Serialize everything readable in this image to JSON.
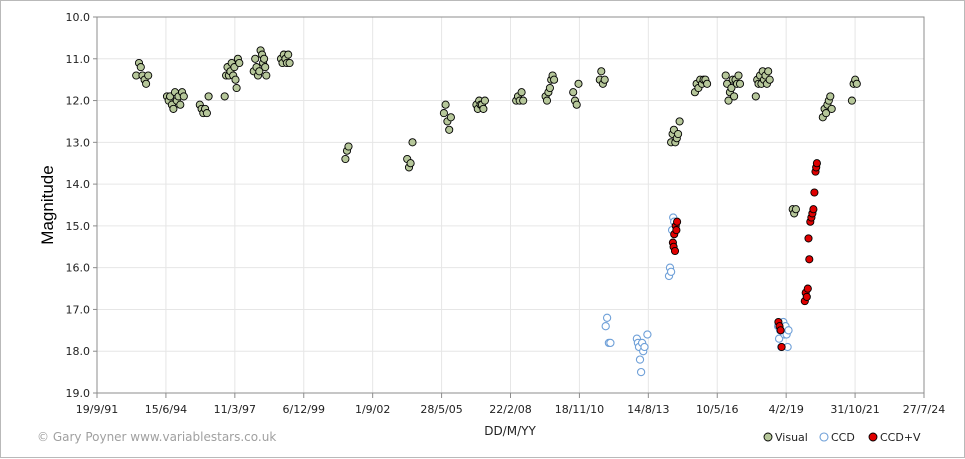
{
  "chart_data": {
    "type": "scatter",
    "title": "",
    "xlabel": "DD/M/YY",
    "ylabel": "Magnitude",
    "xlim": [
      "1991-09-19",
      "2024-07-27"
    ],
    "ylim": [
      10.0,
      19.0
    ],
    "y_inverted": true,
    "grid": true,
    "legend_position": "bottom-right",
    "x_tick_labels": [
      "19/9/91",
      "15/6/94",
      "11/3/97",
      "6/12/99",
      "1/9/02",
      "28/5/05",
      "22/2/08",
      "18/11/10",
      "14/8/13",
      "10/5/16",
      "4/2/19",
      "31/10/21",
      "27/7/24"
    ],
    "y_tick_labels": [
      "10.0",
      "11.0",
      "12.0",
      "13.0",
      "14.0",
      "15.0",
      "16.0",
      "17.0",
      "18.0",
      "19.0"
    ],
    "series": [
      {
        "name": "Visual",
        "color": "#b6c79a",
        "marker": "filled-circle",
        "points": [
          {
            "x": "1993-04-10",
            "y": 11.4
          },
          {
            "x": "1993-05-20",
            "y": 11.1
          },
          {
            "x": "1993-06-15",
            "y": 11.2
          },
          {
            "x": "1993-07-10",
            "y": 11.4
          },
          {
            "x": "1993-08-10",
            "y": 11.5
          },
          {
            "x": "1993-09-01",
            "y": 11.6
          },
          {
            "x": "1993-10-01",
            "y": 11.4
          },
          {
            "x": "1994-07-01",
            "y": 11.9
          },
          {
            "x": "1994-07-25",
            "y": 12.0
          },
          {
            "x": "1994-08-15",
            "y": 11.9
          },
          {
            "x": "1994-09-10",
            "y": 12.1
          },
          {
            "x": "1994-10-01",
            "y": 12.2
          },
          {
            "x": "1994-10-25",
            "y": 11.8
          },
          {
            "x": "1994-11-20",
            "y": 12.0
          },
          {
            "x": "1994-12-15",
            "y": 11.9
          },
          {
            "x": "1995-01-10",
            "y": 12.1
          },
          {
            "x": "1995-02-05",
            "y": 11.8
          },
          {
            "x": "1995-03-01",
            "y": 11.9
          },
          {
            "x": "1995-10-20",
            "y": 12.1
          },
          {
            "x": "1995-11-15",
            "y": 12.2
          },
          {
            "x": "1995-12-10",
            "y": 12.3
          },
          {
            "x": "1996-01-05",
            "y": 12.2
          },
          {
            "x": "1996-01-30",
            "y": 12.3
          },
          {
            "x": "1996-02-25",
            "y": 11.9
          },
          {
            "x": "1996-10-15",
            "y": 11.9
          },
          {
            "x": "1996-11-05",
            "y": 11.4
          },
          {
            "x": "1996-11-25",
            "y": 11.2
          },
          {
            "x": "1996-12-15",
            "y": 11.4
          },
          {
            "x": "1997-01-05",
            "y": 11.3
          },
          {
            "x": "1997-01-25",
            "y": 11.1
          },
          {
            "x": "1997-02-15",
            "y": 11.4
          },
          {
            "x": "1997-03-05",
            "y": 11.2
          },
          {
            "x": "1997-03-20",
            "y": 11.5
          },
          {
            "x": "1997-04-05",
            "y": 11.7
          },
          {
            "x": "1997-04-25",
            "y": 11.0
          },
          {
            "x": "1997-05-15",
            "y": 11.1
          },
          {
            "x": "1997-12-10",
            "y": 11.3
          },
          {
            "x": "1998-01-01",
            "y": 11.0
          },
          {
            "x": "1998-01-20",
            "y": 11.2
          },
          {
            "x": "1998-02-10",
            "y": 11.4
          },
          {
            "x": "1998-03-01",
            "y": 11.3
          },
          {
            "x": "1998-03-20",
            "y": 10.8
          },
          {
            "x": "1998-04-10",
            "y": 10.9
          },
          {
            "x": "1998-04-25",
            "y": 11.1
          },
          {
            "x": "1998-05-10",
            "y": 11.0
          },
          {
            "x": "1998-05-25",
            "y": 11.2
          },
          {
            "x": "1998-06-10",
            "y": 11.4
          },
          {
            "x": "1999-01-10",
            "y": 11.0
          },
          {
            "x": "1999-02-01",
            "y": 11.1
          },
          {
            "x": "1999-02-20",
            "y": 10.9
          },
          {
            "x": "1999-03-15",
            "y": 11.0
          },
          {
            "x": "1999-04-05",
            "y": 11.1
          },
          {
            "x": "1999-04-25",
            "y": 10.9
          },
          {
            "x": "1999-05-15",
            "y": 11.1
          },
          {
            "x": "2001-08-01",
            "y": 13.4
          },
          {
            "x": "2001-08-25",
            "y": 13.2
          },
          {
            "x": "2001-09-15",
            "y": 13.1
          },
          {
            "x": "2004-01-15",
            "y": 13.4
          },
          {
            "x": "2004-02-10",
            "y": 13.6
          },
          {
            "x": "2004-03-05",
            "y": 13.5
          },
          {
            "x": "2004-04-01",
            "y": 13.0
          },
          {
            "x": "2005-07-01",
            "y": 12.3
          },
          {
            "x": "2005-07-25",
            "y": 12.1
          },
          {
            "x": "2005-08-20",
            "y": 12.5
          },
          {
            "x": "2005-09-15",
            "y": 12.7
          },
          {
            "x": "2005-10-10",
            "y": 12.4
          },
          {
            "x": "2006-10-15",
            "y": 12.1
          },
          {
            "x": "2006-11-05",
            "y": 12.2
          },
          {
            "x": "2006-11-25",
            "y": 12.0
          },
          {
            "x": "2006-12-15",
            "y": 12.1
          },
          {
            "x": "2007-01-05",
            "y": 12.1
          },
          {
            "x": "2007-01-25",
            "y": 12.2
          },
          {
            "x": "2007-02-15",
            "y": 12.0
          },
          {
            "x": "2008-05-15",
            "y": 12.0
          },
          {
            "x": "2008-06-10",
            "y": 11.9
          },
          {
            "x": "2008-07-05",
            "y": 12.0
          },
          {
            "x": "2008-08-01",
            "y": 11.8
          },
          {
            "x": "2008-08-25",
            "y": 12.0
          },
          {
            "x": "2009-07-15",
            "y": 11.9
          },
          {
            "x": "2009-08-05",
            "y": 12.0
          },
          {
            "x": "2009-08-25",
            "y": 11.8
          },
          {
            "x": "2009-09-15",
            "y": 11.7
          },
          {
            "x": "2009-10-05",
            "y": 11.5
          },
          {
            "x": "2009-10-25",
            "y": 11.4
          },
          {
            "x": "2009-11-15",
            "y": 11.5
          },
          {
            "x": "2010-08-20",
            "y": 11.8
          },
          {
            "x": "2010-09-15",
            "y": 12.0
          },
          {
            "x": "2010-10-10",
            "y": 12.1
          },
          {
            "x": "2010-11-05",
            "y": 11.6
          },
          {
            "x": "2011-09-10",
            "y": 11.5
          },
          {
            "x": "2011-10-01",
            "y": 11.3
          },
          {
            "x": "2011-10-25",
            "y": 11.6
          },
          {
            "x": "2011-11-20",
            "y": 11.5
          },
          {
            "x": "2014-07-10",
            "y": 13.0
          },
          {
            "x": "2014-08-01",
            "y": 12.8
          },
          {
            "x": "2014-08-20",
            "y": 12.7
          },
          {
            "x": "2014-09-10",
            "y": 13.0
          },
          {
            "x": "2014-10-01",
            "y": 12.9
          },
          {
            "x": "2014-10-20",
            "y": 12.8
          },
          {
            "x": "2014-11-10",
            "y": 12.5
          },
          {
            "x": "2015-06-20",
            "y": 11.8
          },
          {
            "x": "2015-07-15",
            "y": 11.6
          },
          {
            "x": "2015-08-10",
            "y": 11.7
          },
          {
            "x": "2015-09-05",
            "y": 11.5
          },
          {
            "x": "2015-10-01",
            "y": 11.6
          },
          {
            "x": "2015-10-25",
            "y": 11.5
          },
          {
            "x": "2015-11-20",
            "y": 11.5
          },
          {
            "x": "2015-12-15",
            "y": 11.6
          },
          {
            "x": "2016-09-10",
            "y": 11.4
          },
          {
            "x": "2016-09-30",
            "y": 11.6
          },
          {
            "x": "2016-10-20",
            "y": 12.0
          },
          {
            "x": "2016-11-10",
            "y": 11.8
          },
          {
            "x": "2016-12-01",
            "y": 11.7
          },
          {
            "x": "2016-12-20",
            "y": 11.5
          },
          {
            "x": "2017-01-10",
            "y": 11.9
          },
          {
            "x": "2017-01-30",
            "y": 11.5
          },
          {
            "x": "2017-02-20",
            "y": 11.6
          },
          {
            "x": "2017-03-15",
            "y": 11.4
          },
          {
            "x": "2017-04-05",
            "y": 11.6
          },
          {
            "x": "2017-11-20",
            "y": 11.9
          },
          {
            "x": "2017-12-10",
            "y": 11.5
          },
          {
            "x": "2017-12-30",
            "y": 11.6
          },
          {
            "x": "2018-01-20",
            "y": 11.4
          },
          {
            "x": "2018-02-10",
            "y": 11.6
          },
          {
            "x": "2018-03-01",
            "y": 11.3
          },
          {
            "x": "2018-03-20",
            "y": 11.5
          },
          {
            "x": "2018-04-10",
            "y": 11.4
          },
          {
            "x": "2018-04-30",
            "y": 11.6
          },
          {
            "x": "2018-05-20",
            "y": 11.3
          },
          {
            "x": "2018-06-10",
            "y": 11.5
          },
          {
            "x": "2019-05-10",
            "y": 14.6
          },
          {
            "x": "2019-06-01",
            "y": 14.7
          },
          {
            "x": "2019-06-25",
            "y": 14.6
          },
          {
            "x": "2020-07-20",
            "y": 12.4
          },
          {
            "x": "2020-08-15",
            "y": 12.2
          },
          {
            "x": "2020-09-05",
            "y": 12.3
          },
          {
            "x": "2020-09-25",
            "y": 12.1
          },
          {
            "x": "2020-10-15",
            "y": 12.0
          },
          {
            "x": "2020-11-05",
            "y": 11.9
          },
          {
            "x": "2020-11-25",
            "y": 12.2
          },
          {
            "x": "2021-09-15",
            "y": 12.0
          },
          {
            "x": "2021-10-10",
            "y": 11.6
          },
          {
            "x": "2021-11-01",
            "y": 11.5
          },
          {
            "x": "2021-11-25",
            "y": 11.6
          }
        ]
      },
      {
        "name": "CCD",
        "color": "#6fa0d8",
        "marker": "open-circle",
        "points": [
          {
            "x": "2011-12-05",
            "y": 17.4
          },
          {
            "x": "2011-12-25",
            "y": 17.2
          },
          {
            "x": "2012-01-20",
            "y": 17.8
          },
          {
            "x": "2012-02-10",
            "y": 17.8
          },
          {
            "x": "2013-03-01",
            "y": 17.7
          },
          {
            "x": "2013-03-15",
            "y": 17.8
          },
          {
            "x": "2013-04-01",
            "y": 17.9
          },
          {
            "x": "2013-04-15",
            "y": 18.2
          },
          {
            "x": "2013-05-01",
            "y": 18.5
          },
          {
            "x": "2013-05-15",
            "y": 17.8
          },
          {
            "x": "2013-06-01",
            "y": 18.0
          },
          {
            "x": "2013-06-20",
            "y": 17.9
          },
          {
            "x": "2013-08-01",
            "y": 17.6
          },
          {
            "x": "2014-06-10",
            "y": 16.2
          },
          {
            "x": "2014-06-25",
            "y": 16.0
          },
          {
            "x": "2014-07-10",
            "y": 16.1
          },
          {
            "x": "2014-07-25",
            "y": 15.1
          },
          {
            "x": "2014-08-10",
            "y": 14.8
          },
          {
            "x": "2014-08-25",
            "y": 14.9
          },
          {
            "x": "2018-10-10",
            "y": 17.4
          },
          {
            "x": "2018-10-25",
            "y": 17.7
          },
          {
            "x": "2018-11-10",
            "y": 17.5
          },
          {
            "x": "2018-11-25",
            "y": 17.9
          },
          {
            "x": "2018-12-10",
            "y": 17.5
          },
          {
            "x": "2018-12-25",
            "y": 17.3
          },
          {
            "x": "2019-01-10",
            "y": 17.6
          },
          {
            "x": "2019-01-25",
            "y": 17.4
          },
          {
            "x": "2019-02-10",
            "y": 17.6
          },
          {
            "x": "2019-02-25",
            "y": 17.9
          },
          {
            "x": "2019-03-10",
            "y": 17.5
          }
        ]
      },
      {
        "name": "CCD+V",
        "color": "#e00000",
        "marker": "filled-circle",
        "points": [
          {
            "x": "2014-08-05",
            "y": 15.4
          },
          {
            "x": "2014-08-15",
            "y": 15.5
          },
          {
            "x": "2014-08-25",
            "y": 15.2
          },
          {
            "x": "2014-09-05",
            "y": 15.6
          },
          {
            "x": "2014-09-15",
            "y": 15.0
          },
          {
            "x": "2014-09-25",
            "y": 15.1
          },
          {
            "x": "2014-10-05",
            "y": 14.9
          },
          {
            "x": "2018-10-15",
            "y": 17.3
          },
          {
            "x": "2018-10-30",
            "y": 17.4
          },
          {
            "x": "2018-11-15",
            "y": 17.5
          },
          {
            "x": "2018-11-30",
            "y": 17.9
          },
          {
            "x": "2019-11-01",
            "y": 16.8
          },
          {
            "x": "2019-11-15",
            "y": 16.6
          },
          {
            "x": "2019-11-30",
            "y": 16.7
          },
          {
            "x": "2019-12-15",
            "y": 16.5
          },
          {
            "x": "2019-12-25",
            "y": 15.3
          },
          {
            "x": "2020-01-05",
            "y": 15.8
          },
          {
            "x": "2020-01-20",
            "y": 14.9
          },
          {
            "x": "2020-02-05",
            "y": 14.8
          },
          {
            "x": "2020-02-20",
            "y": 14.7
          },
          {
            "x": "2020-03-05",
            "y": 14.6
          },
          {
            "x": "2020-03-20",
            "y": 14.2
          },
          {
            "x": "2020-04-05",
            "y": 13.7
          },
          {
            "x": "2020-04-15",
            "y": 13.6
          },
          {
            "x": "2020-04-25",
            "y": 13.5
          }
        ]
      }
    ]
  },
  "credit": "© Gary Poyner  www.variablestars.co.uk"
}
